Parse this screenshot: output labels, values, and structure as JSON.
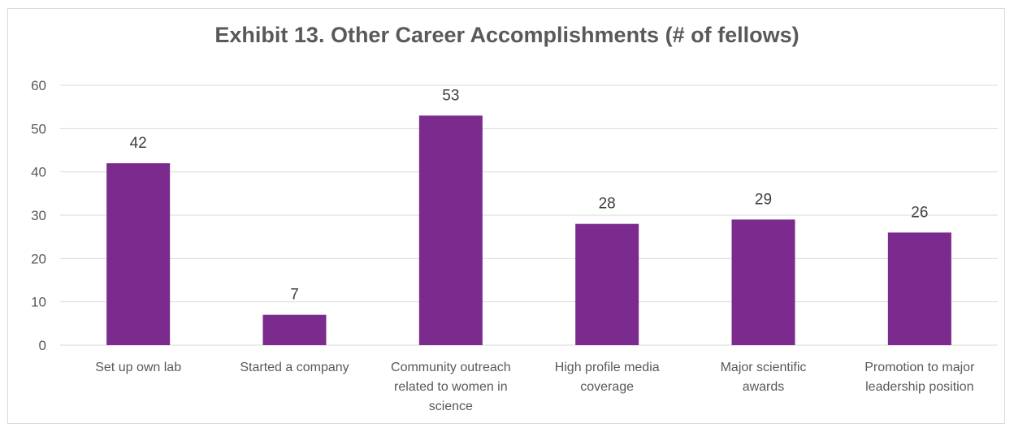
{
  "chart_data": {
    "type": "bar",
    "title": "Exhibit 13. Other Career Accomplishments (# of fellows)",
    "categories": [
      [
        "Set up own lab"
      ],
      [
        "Started a company"
      ],
      [
        "Community outreach",
        "related to women in",
        "science"
      ],
      [
        "High profile media",
        "coverage"
      ],
      [
        "Major scientific",
        "awards"
      ],
      [
        "Promotion to major",
        "leadership position"
      ]
    ],
    "values": [
      42,
      7,
      53,
      28,
      29,
      26
    ],
    "data_labels": [
      "42",
      "7",
      "53",
      "28",
      "29",
      "26"
    ],
    "ylim": [
      0,
      60
    ],
    "yticks": [
      "0",
      "10",
      "20",
      "30",
      "40",
      "50",
      "60"
    ],
    "ytick_values": [
      0,
      10,
      20,
      30,
      40,
      50,
      60
    ],
    "xlabel": "",
    "ylabel": "",
    "grid": true,
    "legend": "none",
    "bar_color": "#7B2A8E",
    "grid_color": "#d9d9d9"
  }
}
